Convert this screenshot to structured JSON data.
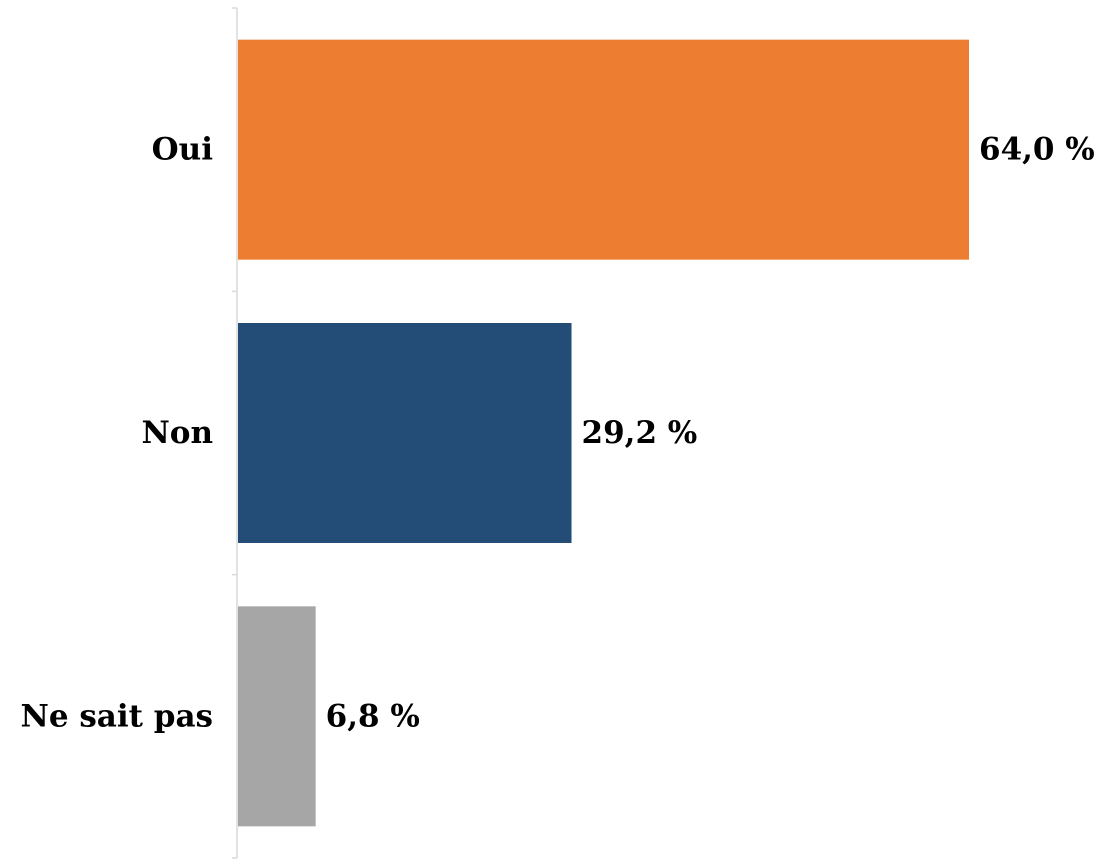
{
  "chart_data": {
    "type": "bar",
    "orientation": "horizontal",
    "categories": [
      "Oui",
      "Non",
      "Ne sait pas"
    ],
    "values": [
      64.0,
      29.2,
      6.8
    ],
    "value_labels": [
      "64,0 %",
      "29,2 %",
      "6,8 %"
    ],
    "unit": "%",
    "colors": [
      "#ED7D31",
      "#234C76",
      "#A6A6A6"
    ],
    "axis_color": "#D9D9D9",
    "xlim": [
      0,
      64.0
    ],
    "grid": false,
    "legend": "none"
  }
}
